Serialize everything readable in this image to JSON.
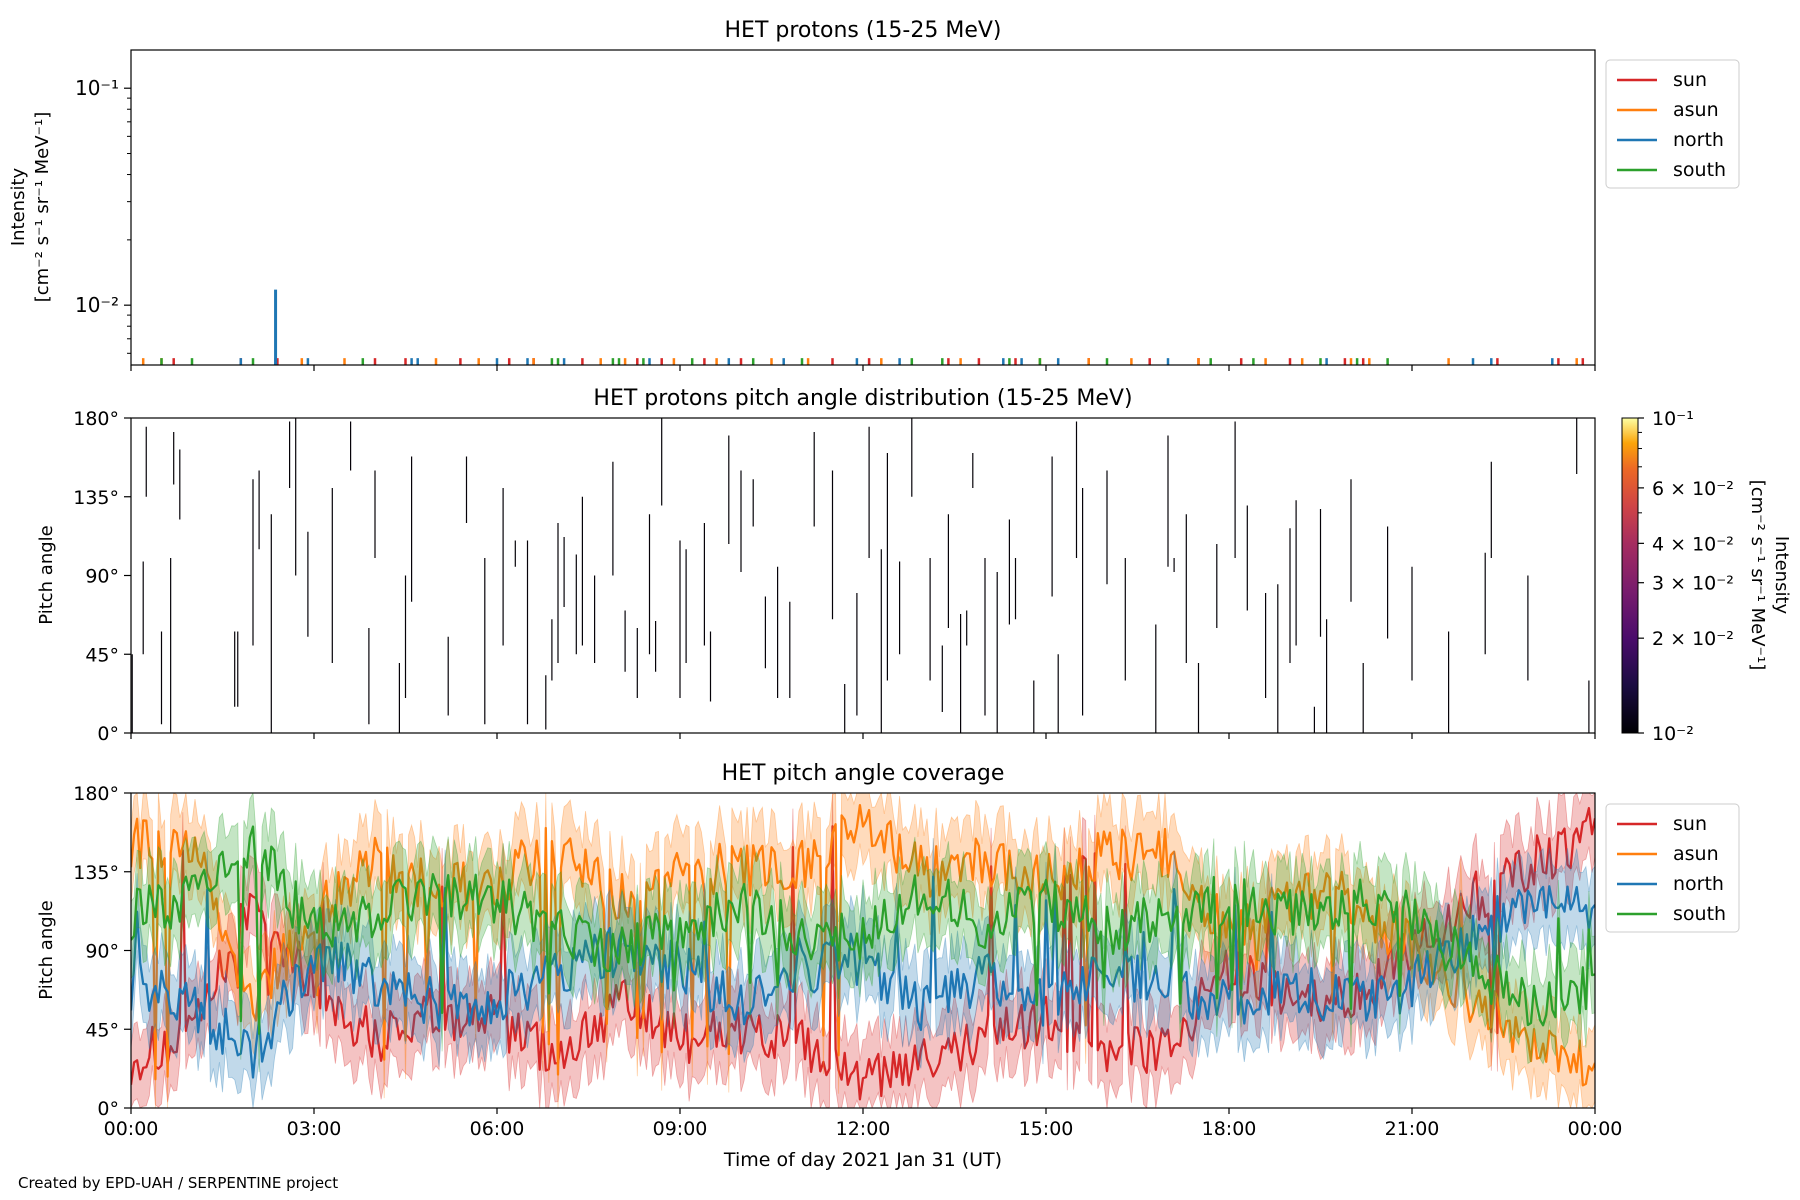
{
  "footer": "Created by EPD-UAH / SERPENTINE project",
  "colors": {
    "sun": "#d62728",
    "asun": "#ff7f0e",
    "north": "#1f77b4",
    "south": "#2ca02c"
  },
  "chart_data": [
    {
      "type": "line",
      "title": "HET protons (15-25 MeV)",
      "ylabel_lines": [
        "Intensity",
        "[cm⁻² s⁻¹ sr⁻¹ MeV⁻¹]"
      ],
      "yscale": "log",
      "ylim": [
        0.0053,
        0.15
      ],
      "y_ticks": [
        {
          "value": 0.01,
          "label": "10⁻²"
        },
        {
          "value": 0.1,
          "label": "10⁻¹"
        }
      ],
      "legend": [
        "sun",
        "asun",
        "north",
        "south"
      ],
      "legend_position": "outside-right",
      "note": "sparse single-count spikes near the bottom of the axis",
      "spikes": {
        "sun": [
          0.7,
          1.8,
          2.4,
          4.0,
          4.5,
          5.4,
          6.2,
          6.6,
          7.4,
          8.3,
          8.7,
          9.4,
          10.0,
          11.5,
          12.1,
          13.4,
          13.9,
          14.5,
          15.7,
          16.7,
          17.5,
          18.2,
          19.0,
          19.9,
          20.2,
          22.4,
          23.8,
          23.4
        ],
        "asun": [
          0.2,
          0.5,
          2.8,
          3.5,
          5.0,
          5.7,
          6.6,
          7.7,
          8.1,
          8.9,
          9.6,
          10.5,
          11.1,
          12.3,
          13.6,
          14.9,
          15.7,
          16.4,
          17.5,
          18.6,
          19.2,
          20.0,
          20.3,
          21.6,
          23.7
        ],
        "north": [
          1.8,
          2.37,
          2.9,
          4.6,
          4.7,
          6.0,
          6.5,
          7.1,
          8.5,
          9.8,
          10.7,
          11.9,
          12.6,
          14.3,
          14.6,
          15.2,
          17.0,
          19.6,
          22.0,
          22.3,
          23.3
        ],
        "south": [
          0.5,
          1.0,
          2.0,
          3.8,
          6.9,
          7.0,
          7.9,
          8.0,
          8.4,
          9.2,
          10.2,
          11.0,
          12.8,
          13.3,
          14.4,
          14.9,
          16.0,
          17.7,
          18.4,
          19.5,
          20.1,
          20.6
        ]
      },
      "peak": {
        "series": "north",
        "x": 2.37,
        "y": 0.0118
      }
    },
    {
      "type": "heatmap",
      "title": "HET protons pitch angle distribution (15-25 MeV)",
      "ylabel": "Pitch angle",
      "ylim": [
        0,
        180
      ],
      "y_ticks": [
        "0°",
        "45°",
        "90°",
        "135°",
        "180°"
      ],
      "colorbar": {
        "label_lines": [
          "Intensity",
          "[cm⁻² s⁻¹ sr⁻¹ MeV⁻¹]"
        ],
        "scale": "log",
        "range": [
          0.01,
          0.1
        ],
        "ticks": [
          {
            "value": 0.01,
            "label": "10⁻²"
          },
          {
            "value": 0.02,
            "label": "2 × 10⁻²"
          },
          {
            "value": 0.03,
            "label": "3 × 10⁻²"
          },
          {
            "value": 0.04,
            "label": "4 × 10⁻²"
          },
          {
            "value": 0.06,
            "label": "6 × 10⁻²"
          },
          {
            "value": 0.1,
            "label": "10⁻¹"
          }
        ]
      },
      "segments": [
        [
          0.02,
          0,
          45
        ],
        [
          0.2,
          45,
          98
        ],
        [
          0.25,
          135,
          175
        ],
        [
          0.5,
          5,
          58
        ],
        [
          0.65,
          0,
          100
        ],
        [
          0.7,
          142,
          172
        ],
        [
          0.8,
          122,
          162
        ],
        [
          1.7,
          15,
          58
        ],
        [
          1.75,
          15,
          58
        ],
        [
          2.0,
          50,
          145
        ],
        [
          2.1,
          105,
          150
        ],
        [
          2.3,
          0,
          125
        ],
        [
          2.6,
          140,
          178
        ],
        [
          2.7,
          90,
          180
        ],
        [
          2.9,
          55,
          115
        ],
        [
          3.3,
          40,
          140
        ],
        [
          3.6,
          150,
          178
        ],
        [
          3.9,
          5,
          60
        ],
        [
          4.0,
          100,
          150
        ],
        [
          4.4,
          0,
          40
        ],
        [
          4.5,
          20,
          90
        ],
        [
          4.6,
          75,
          158
        ],
        [
          5.2,
          10,
          55
        ],
        [
          5.5,
          120,
          158
        ],
        [
          5.8,
          5,
          100
        ],
        [
          6.1,
          50,
          140
        ],
        [
          6.3,
          95,
          110
        ],
        [
          6.5,
          5,
          110
        ],
        [
          6.8,
          2,
          33
        ],
        [
          6.9,
          30,
          65
        ],
        [
          7.0,
          40,
          120
        ],
        [
          7.1,
          72,
          112
        ],
        [
          7.3,
          45,
          102
        ],
        [
          7.4,
          50,
          135
        ],
        [
          7.6,
          40,
          90
        ],
        [
          7.9,
          90,
          155
        ],
        [
          8.1,
          35,
          70
        ],
        [
          8.3,
          20,
          60
        ],
        [
          8.5,
          45,
          125
        ],
        [
          8.6,
          35,
          64
        ],
        [
          8.7,
          130,
          180
        ],
        [
          9.0,
          20,
          110
        ],
        [
          9.1,
          40,
          105
        ],
        [
          9.4,
          50,
          120
        ],
        [
          9.5,
          18,
          58
        ],
        [
          9.8,
          108,
          170
        ],
        [
          10.0,
          92,
          150
        ],
        [
          10.2,
          118,
          145
        ],
        [
          10.4,
          37,
          78
        ],
        [
          10.6,
          20,
          95
        ],
        [
          10.8,
          20,
          75
        ],
        [
          11.2,
          118,
          172
        ],
        [
          11.5,
          65,
          150
        ],
        [
          11.7,
          0,
          28
        ],
        [
          11.9,
          10,
          80
        ],
        [
          12.1,
          100,
          175
        ],
        [
          12.3,
          0,
          105
        ],
        [
          12.4,
          30,
          160
        ],
        [
          12.6,
          45,
          98
        ],
        [
          12.8,
          135,
          180
        ],
        [
          13.1,
          30,
          100
        ],
        [
          13.3,
          12,
          50
        ],
        [
          13.4,
          60,
          125
        ],
        [
          13.6,
          0,
          68
        ],
        [
          13.7,
          50,
          70
        ],
        [
          13.8,
          140,
          160
        ],
        [
          14.0,
          10,
          100
        ],
        [
          14.2,
          0,
          92
        ],
        [
          14.4,
          62,
          122
        ],
        [
          14.5,
          65,
          100
        ],
        [
          14.8,
          0,
          30
        ],
        [
          15.1,
          78,
          158
        ],
        [
          15.2,
          0,
          45
        ],
        [
          15.5,
          100,
          178
        ],
        [
          15.6,
          10,
          140
        ],
        [
          16.0,
          85,
          150
        ],
        [
          16.3,
          30,
          100
        ],
        [
          16.8,
          0,
          62
        ],
        [
          17.0,
          95,
          170
        ],
        [
          17.1,
          92,
          100
        ],
        [
          17.3,
          40,
          125
        ],
        [
          17.5,
          0,
          40
        ],
        [
          17.8,
          60,
          108
        ],
        [
          18.1,
          100,
          178
        ],
        [
          18.3,
          70,
          130
        ],
        [
          18.6,
          20,
          80
        ],
        [
          18.8,
          0,
          85
        ],
        [
          19.0,
          40,
          117
        ],
        [
          19.1,
          50,
          133
        ],
        [
          19.4,
          0,
          15
        ],
        [
          19.5,
          55,
          128
        ],
        [
          19.6,
          0,
          65
        ],
        [
          20.0,
          75,
          145
        ],
        [
          20.2,
          0,
          40
        ],
        [
          20.6,
          54,
          118
        ],
        [
          21.0,
          30,
          95
        ],
        [
          21.6,
          0,
          58
        ],
        [
          22.2,
          45,
          103
        ],
        [
          22.3,
          100,
          155
        ],
        [
          22.9,
          30,
          90
        ],
        [
          23.7,
          148,
          180
        ],
        [
          23.9,
          0,
          30
        ]
      ]
    },
    {
      "type": "area",
      "title": "HET pitch angle coverage",
      "ylabel": "Pitch angle",
      "xlabel": "Time of day 2021 Jan 31 (UT)",
      "xlim": [
        0,
        24
      ],
      "ylim": [
        0,
        180
      ],
      "x_ticks": [
        "00:00",
        "03:00",
        "06:00",
        "09:00",
        "12:00",
        "15:00",
        "18:00",
        "21:00",
        "00:00"
      ],
      "y_ticks": [
        "0°",
        "45°",
        "90°",
        "135°",
        "180°"
      ],
      "legend": [
        "sun",
        "asun",
        "north",
        "south"
      ],
      "legend_position": "outside-right",
      "band_halfwidth_deg": 22,
      "series": [
        {
          "name": "sun",
          "x": [
            0,
            1,
            2,
            3,
            4,
            5,
            6,
            7,
            8,
            9,
            10,
            11,
            12,
            13,
            14,
            15,
            16,
            17,
            18,
            19,
            20,
            21,
            22,
            23,
            24
          ],
          "y": [
            28,
            40,
            120,
            70,
            40,
            55,
            50,
            30,
            60,
            40,
            45,
            35,
            15,
            25,
            40,
            50,
            35,
            35,
            80,
            60,
            60,
            90,
            120,
            140,
            160
          ]
        },
        {
          "name": "asun",
          "x": [
            0,
            1,
            2,
            3,
            4,
            5,
            6,
            7,
            8,
            9,
            10,
            11,
            12,
            13,
            14,
            15,
            16,
            17,
            18,
            19,
            20,
            21,
            22,
            23,
            24
          ],
          "y": [
            152,
            150,
            60,
            110,
            140,
            125,
            130,
            150,
            120,
            140,
            135,
            140,
            165,
            135,
            140,
            130,
            145,
            145,
            100,
            120,
            120,
            90,
            60,
            40,
            20
          ]
        },
        {
          "name": "north",
          "x": [
            0,
            1,
            2,
            3,
            4,
            5,
            6,
            7,
            8,
            9,
            10,
            11,
            12,
            13,
            14,
            15,
            16,
            17,
            18,
            19,
            20,
            21,
            22,
            23,
            24
          ],
          "y": [
            70,
            60,
            30,
            90,
            70,
            60,
            60,
            80,
            90,
            80,
            60,
            80,
            85,
            55,
            75,
            60,
            80,
            70,
            60,
            70,
            60,
            70,
            100,
            120,
            110
          ]
        },
        {
          "name": "south",
          "x": [
            0,
            1,
            2,
            3,
            4,
            5,
            6,
            7,
            8,
            9,
            10,
            11,
            12,
            13,
            14,
            15,
            16,
            17,
            18,
            19,
            20,
            21,
            22,
            23,
            24
          ],
          "y": [
            110,
            120,
            150,
            100,
            110,
            125,
            120,
            100,
            90,
            100,
            115,
            100,
            95,
            125,
            105,
            120,
            100,
            110,
            120,
            110,
            120,
            110,
            80,
            60,
            70
          ]
        }
      ]
    }
  ]
}
